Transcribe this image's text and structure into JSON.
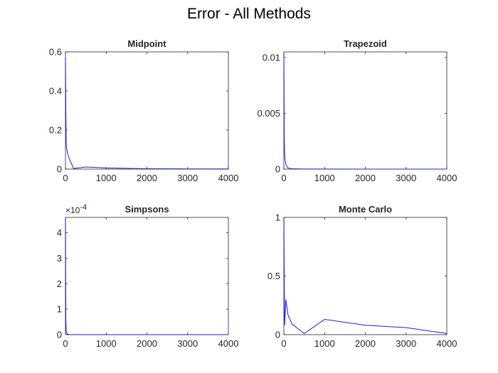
{
  "figure_title": "Error - All Methods",
  "colors": {
    "line": "#1f1fd6",
    "axis": "#262626",
    "background": "#ffffff"
  },
  "chart_data": [
    {
      "type": "line",
      "title": "Midpoint",
      "xlabel": "",
      "ylabel": "",
      "xlim": [
        0,
        4000
      ],
      "ylim": [
        0,
        0.6
      ],
      "xticks": [
        0,
        1000,
        2000,
        3000,
        4000
      ],
      "xtick_labels": [
        "0",
        "1000",
        "2000",
        "3000",
        "4000"
      ],
      "yticks": [
        0,
        0.2,
        0.4,
        0.6
      ],
      "ytick_labels": [
        "0",
        "0.2",
        "0.4",
        "0.6"
      ],
      "exponent_label": "",
      "grid": false,
      "series": [
        {
          "x": [
            1,
            10,
            20,
            50,
            100,
            200,
            500,
            1000,
            2000,
            3000,
            4000
          ],
          "y": [
            0.57,
            0.3,
            0.12,
            0.08,
            0.05,
            0.003,
            0.011,
            0.006,
            0.002,
            0.001,
            0.001
          ]
        }
      ]
    },
    {
      "type": "line",
      "title": "Trapezoid",
      "xlabel": "",
      "ylabel": "",
      "xlim": [
        0,
        4000
      ],
      "ylim": [
        0,
        0.0105
      ],
      "xticks": [
        0,
        1000,
        2000,
        3000,
        4000
      ],
      "xtick_labels": [
        "0",
        "1000",
        "2000",
        "3000",
        "4000"
      ],
      "yticks": [
        0,
        0.005,
        0.01
      ],
      "ytick_labels": [
        "0",
        "0.005",
        "0.01"
      ],
      "exponent_label": "",
      "grid": false,
      "series": [
        {
          "x": [
            1,
            10,
            20,
            50,
            100,
            200,
            500,
            1000,
            2000,
            3000,
            4000
          ],
          "y": [
            0.0104,
            0.0028,
            0.0012,
            0.0004,
            0.0001,
            3e-05,
            1e-05,
            5e-06,
            2e-06,
            1e-06,
            1e-06
          ]
        }
      ]
    },
    {
      "type": "line",
      "title": "Simpsons",
      "xlabel": "",
      "ylabel": "",
      "xlim": [
        0,
        4000
      ],
      "ylim": [
        0,
        4.6
      ],
      "xticks": [
        0,
        1000,
        2000,
        3000,
        4000
      ],
      "xtick_labels": [
        "0",
        "1000",
        "2000",
        "3000",
        "4000"
      ],
      "yticks": [
        0,
        1,
        2,
        3,
        4
      ],
      "ytick_labels": [
        "0",
        "1",
        "2",
        "3",
        "4"
      ],
      "exponent_label": "×10",
      "exponent_power": "-4",
      "grid": false,
      "series": [
        {
          "x": [
            1,
            10,
            20,
            50,
            100,
            200,
            500,
            1000,
            2000,
            3000,
            4000
          ],
          "y": [
            4.6,
            0.6,
            0.1,
            0.02,
            0.005,
            0.001,
            0.0005,
            0.0002,
            0.0001,
            0.0001,
            0.0001
          ]
        }
      ]
    },
    {
      "type": "line",
      "title": "Monte Carlo",
      "xlabel": "",
      "ylabel": "",
      "xlim": [
        0,
        4000
      ],
      "ylim": [
        0,
        1
      ],
      "xticks": [
        0,
        1000,
        2000,
        3000,
        4000
      ],
      "xtick_labels": [
        "0",
        "1000",
        "2000",
        "3000",
        "4000"
      ],
      "yticks": [
        0,
        0.5,
        1
      ],
      "ytick_labels": [
        "0",
        "0.5",
        "1"
      ],
      "exponent_label": "",
      "grid": false,
      "series": [
        {
          "x": [
            1,
            10,
            20,
            50,
            100,
            200,
            500,
            1000,
            2000,
            3000,
            4000
          ],
          "y": [
            0.99,
            0.45,
            0.08,
            0.3,
            0.17,
            0.09,
            0.01,
            0.13,
            0.08,
            0.06,
            0.01
          ]
        }
      ]
    }
  ]
}
